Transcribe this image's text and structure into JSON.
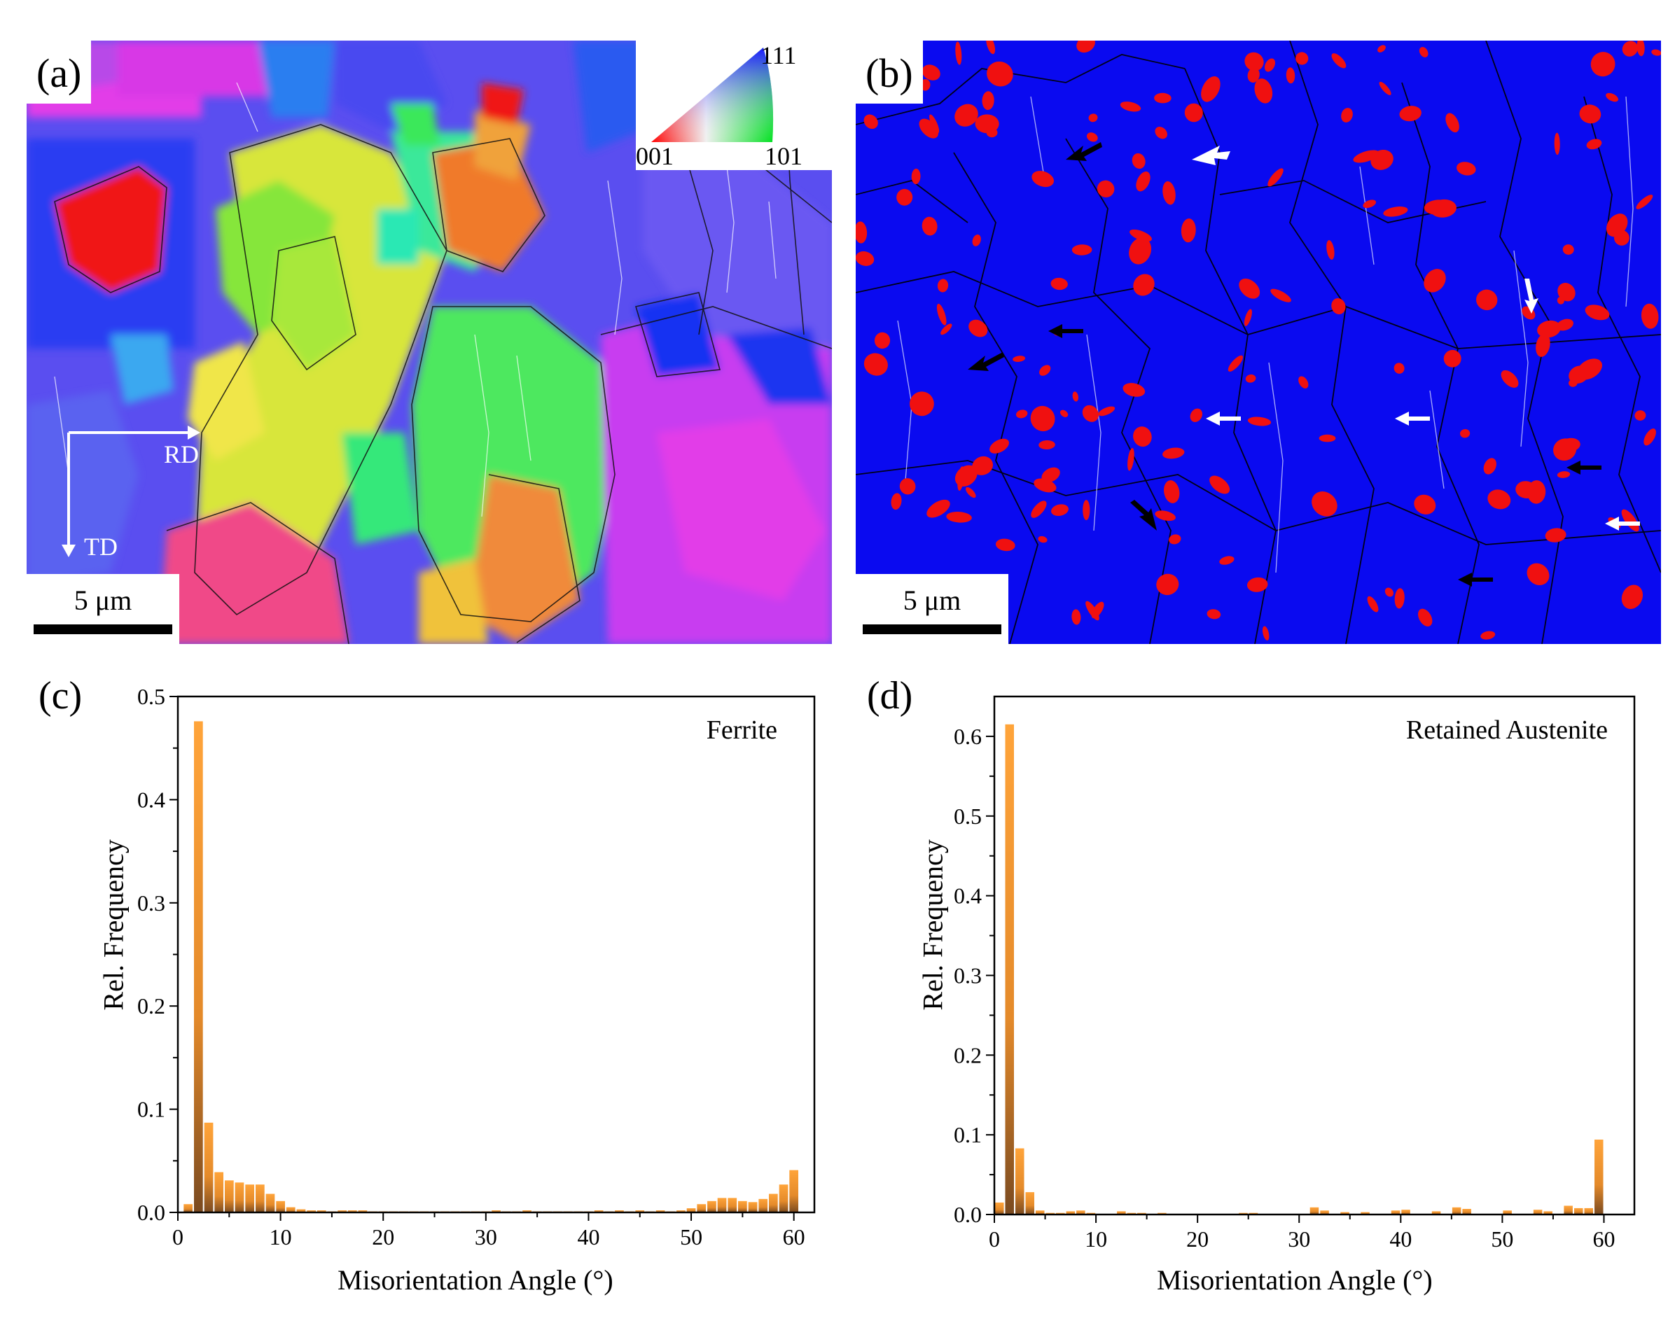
{
  "panel_a": {
    "label": "(a)",
    "scale_text": "5 μm",
    "ipf_key": {
      "top": "111",
      "left": "001",
      "right": "101"
    },
    "directions": {
      "rd": "RD",
      "td": "TD"
    }
  },
  "panel_b": {
    "label": "(b)",
    "scale_text": "5 μm"
  },
  "chart_data": [
    {
      "type": "bar",
      "panel_label": "(c)",
      "legend": "Ferrite",
      "xlabel": "Misorientation Angle (°)",
      "ylabel": "Rel. Frequency",
      "xlim": [
        0,
        62
      ],
      "ylim": [
        0,
        0.5
      ],
      "xticks": [
        "0",
        "10",
        "20",
        "30",
        "40",
        "50",
        "60"
      ],
      "yticks": [
        "0.0",
        "0.1",
        "0.2",
        "0.3",
        "0.4",
        "0.5"
      ],
      "bar_width": 1,
      "x": [
        1,
        2,
        3,
        4,
        5,
        6,
        7,
        8,
        9,
        10,
        11,
        12,
        13,
        14,
        15,
        16,
        17,
        18,
        19,
        20,
        21,
        22,
        23,
        24,
        25,
        26,
        27,
        28,
        29,
        30,
        31,
        32,
        33,
        34,
        35,
        36,
        37,
        38,
        39,
        40,
        41,
        42,
        43,
        44,
        45,
        46,
        47,
        48,
        49,
        50,
        51,
        52,
        53,
        54,
        55,
        56,
        57,
        58,
        59,
        60
      ],
      "values": [
        0.008,
        0.476,
        0.087,
        0.039,
        0.031,
        0.029,
        0.027,
        0.027,
        0.018,
        0.011,
        0.005,
        0.003,
        0.002,
        0.002,
        0.001,
        0.002,
        0.002,
        0.002,
        0.001,
        0.001,
        0.001,
        0.001,
        0.001,
        0.001,
        0.001,
        0.001,
        0.001,
        0.001,
        0.001,
        0.001,
        0.002,
        0.001,
        0.001,
        0.002,
        0.001,
        0.001,
        0.001,
        0.001,
        0.001,
        0.001,
        0.002,
        0.001,
        0.002,
        0.001,
        0.002,
        0.001,
        0.002,
        0.001,
        0.002,
        0.004,
        0.008,
        0.011,
        0.014,
        0.014,
        0.011,
        0.01,
        0.013,
        0.018,
        0.027,
        0.041
      ]
    },
    {
      "type": "bar",
      "panel_label": "(d)",
      "legend": "Retained Austenite",
      "xlabel": "Misorientation Angle (°)",
      "ylabel": "Rel. Frequency",
      "xlim": [
        0,
        63
      ],
      "ylim": [
        0,
        0.65
      ],
      "xticks": [
        "0",
        "10",
        "20",
        "30",
        "40",
        "50",
        "60"
      ],
      "yticks": [
        "0.0",
        "0.1",
        "0.2",
        "0.3",
        "0.4",
        "0.5",
        "0.6"
      ],
      "bar_width": 1,
      "x": [
        0.5,
        1.5,
        2.5,
        3.5,
        4.5,
        5.5,
        6.5,
        7.5,
        8.5,
        9.5,
        12.5,
        13.5,
        14.5,
        16.5,
        24.5,
        25.5,
        31.5,
        32.5,
        34.5,
        36.5,
        39.5,
        40.5,
        43.5,
        45.5,
        46.5,
        50.5,
        53.5,
        54.5,
        56.5,
        57.5,
        58.5,
        59.5
      ],
      "values": [
        0.015,
        0.615,
        0.083,
        0.028,
        0.005,
        0.002,
        0.002,
        0.004,
        0.005,
        0.002,
        0.004,
        0.002,
        0.002,
        0.002,
        0.002,
        0.002,
        0.009,
        0.005,
        0.003,
        0.003,
        0.005,
        0.006,
        0.004,
        0.009,
        0.007,
        0.005,
        0.006,
        0.004,
        0.011,
        0.008,
        0.008,
        0.094
      ]
    }
  ]
}
